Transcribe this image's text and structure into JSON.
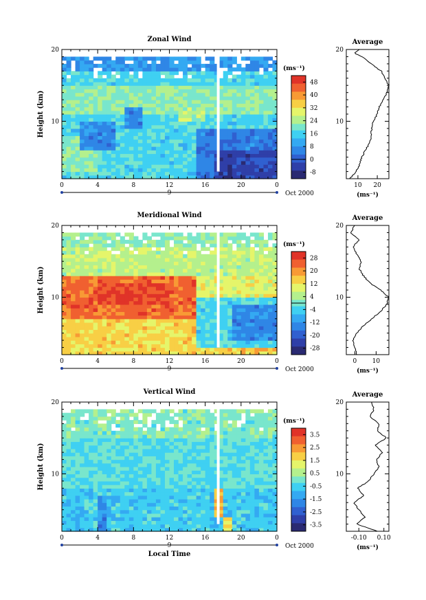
{
  "colors": {
    "scale": [
      "#2a2a72",
      "#2f3fa8",
      "#3060d0",
      "#2f86e6",
      "#34a9f2",
      "#3fd0f2",
      "#79e6cc",
      "#b4f08d",
      "#e5f56a",
      "#f8cf45",
      "#f89a35",
      "#f06030",
      "#e03328"
    ]
  },
  "chart_data": [
    {
      "type": "heatmap",
      "title": "Zonal Wind",
      "ylabel": "Height (km)",
      "xlabel": "",
      "x_ticks": [
        "0",
        "4",
        "8",
        "12",
        "16",
        "20",
        "0"
      ],
      "xlim": [
        0,
        24
      ],
      "y_ticks": [
        "10",
        "20"
      ],
      "ylim": [
        2,
        20
      ],
      "day_label": "9",
      "date_label": "Oct 2000",
      "colorbar_unit": "(ms⁻¹)",
      "colorbar_ticks": [
        "48",
        "40",
        "32",
        "24",
        "16",
        "8",
        "0",
        "-8"
      ],
      "colorbar_range": [
        -12,
        52
      ],
      "zero_level": 0,
      "regions": [
        {
          "t0": 0,
          "t1": 24,
          "h0": 2,
          "h1": 19,
          "value": 16
        },
        {
          "t0": 0,
          "t1": 24,
          "h0": 11,
          "h1": 15,
          "value": 22
        },
        {
          "t0": 0,
          "t1": 4,
          "h0": 3,
          "h1": 8,
          "value": 22
        },
        {
          "t0": 2,
          "t1": 6,
          "h0": 6,
          "h1": 10,
          "value": 6
        },
        {
          "t0": 7,
          "t1": 9,
          "h0": 9,
          "h1": 12,
          "value": 6
        },
        {
          "t0": 13,
          "t1": 16,
          "h0": 10,
          "h1": 12,
          "value": 26
        },
        {
          "t0": 15,
          "t1": 24,
          "h0": 2,
          "h1": 9,
          "value": 4
        },
        {
          "t0": 17,
          "t1": 24,
          "h0": 2,
          "h1": 6,
          "value": -4
        },
        {
          "t0": 0,
          "t1": 24,
          "h0": 17,
          "h1": 19,
          "value": 8
        }
      ],
      "avg_title": "Average",
      "avg_xlabel": "(ms⁻¹)",
      "avg_xticks": [
        "10",
        "20"
      ],
      "avg_xlim": [
        4,
        26
      ],
      "avg_profile": {
        "h": [
          2,
          3,
          4,
          5,
          6,
          7,
          8,
          9,
          10,
          11,
          12,
          13,
          14,
          15,
          16,
          17,
          18,
          19,
          19.5,
          20
        ],
        "v": [
          6,
          9,
          11,
          12,
          14,
          16,
          17,
          17,
          18,
          20,
          21,
          23,
          25,
          26,
          24,
          22,
          17,
          12,
          8,
          11
        ]
      }
    },
    {
      "type": "heatmap",
      "title": "Meridional Wind",
      "ylabel": "Height (km)",
      "xlabel": "",
      "x_ticks": [
        "0",
        "4",
        "8",
        "12",
        "16",
        "20",
        "0"
      ],
      "xlim": [
        0,
        24
      ],
      "y_ticks": [
        "10",
        "20"
      ],
      "ylim": [
        2,
        20
      ],
      "day_label": "9",
      "date_label": "Oct 2000",
      "colorbar_unit": "(ms⁻¹)",
      "colorbar_ticks": [
        "28",
        "20",
        "12",
        "4",
        "-4",
        "-12",
        "-20",
        "-28"
      ],
      "colorbar_range": [
        -32,
        32
      ],
      "zero_level": 0,
      "regions": [
        {
          "t0": 0,
          "t1": 24,
          "h0": 2,
          "h1": 19,
          "value": 10
        },
        {
          "t0": 0,
          "t1": 24,
          "h0": 2,
          "h1": 7,
          "value": 14
        },
        {
          "t0": 0,
          "t1": 15,
          "h0": 7,
          "h1": 13,
          "value": 24
        },
        {
          "t0": 4,
          "t1": 12,
          "h0": 9,
          "h1": 12,
          "value": 28
        },
        {
          "t0": 0,
          "t1": 24,
          "h0": 13,
          "h1": 17,
          "value": 6
        },
        {
          "t0": 15,
          "t1": 24,
          "h0": 3,
          "h1": 10,
          "value": -4
        },
        {
          "t0": 19,
          "t1": 24,
          "h0": 4,
          "h1": 9,
          "value": -14
        },
        {
          "t0": 0,
          "t1": 24,
          "h0": 17,
          "h1": 19,
          "value": 2
        }
      ],
      "avg_title": "Average",
      "avg_xlabel": "(ms⁻¹)",
      "avg_xticks": [
        "0",
        "10"
      ],
      "avg_xlim": [
        -4,
        16
      ],
      "avg_profile": {
        "h": [
          2,
          3,
          4,
          5,
          6,
          7,
          8,
          9,
          10,
          11,
          12,
          13,
          14,
          15,
          16,
          17,
          18,
          19,
          20
        ],
        "v": [
          1,
          0,
          -1,
          1,
          4,
          8,
          12,
          15,
          16,
          12,
          7,
          4,
          2,
          3,
          1,
          -1,
          2,
          -2,
          0
        ]
      }
    },
    {
      "type": "heatmap",
      "title": "Vertical Wind",
      "ylabel": "Height (km)",
      "xlabel": "Local Time",
      "x_ticks": [
        "0",
        "4",
        "8",
        "12",
        "16",
        "20",
        "0"
      ],
      "xlim": [
        0,
        24
      ],
      "y_ticks": [
        "10",
        "20"
      ],
      "ylim": [
        2,
        20
      ],
      "day_label": "9",
      "date_label": "Oct 2000",
      "colorbar_unit": "(ms⁻¹)",
      "colorbar_ticks": [
        "3.5",
        "2.5",
        "1.5",
        "0.5",
        "-0.5",
        "-1.5",
        "-2.5",
        "-3.5"
      ],
      "colorbar_range": [
        -4,
        4
      ],
      "zero_level": null,
      "regions": [
        {
          "t0": 0,
          "t1": 24,
          "h0": 2,
          "h1": 19,
          "value": -0.3
        },
        {
          "t0": 0,
          "t1": 24,
          "h0": 2,
          "h1": 8,
          "value": -0.7
        },
        {
          "t0": 4,
          "t1": 5,
          "h0": 2,
          "h1": 7,
          "value": -1.8
        },
        {
          "t0": 17,
          "t1": 18,
          "h0": 4,
          "h1": 8,
          "value": 2.2
        },
        {
          "t0": 18,
          "t1": 19,
          "h0": 2,
          "h1": 4,
          "value": 1.6
        },
        {
          "t0": 0,
          "t1": 24,
          "h0": 15,
          "h1": 19,
          "value": 0.1
        }
      ],
      "avg_title": "Average",
      "avg_xlabel": "(ms⁻¹)",
      "avg_xticks": [
        "-0.10",
        "0.10"
      ],
      "avg_xlim": [
        -0.2,
        0.14
      ],
      "avg_profile": {
        "h": [
          2,
          3,
          4,
          5,
          6,
          7,
          8,
          9,
          10,
          11,
          12,
          13,
          14,
          15,
          16,
          17,
          18,
          19,
          20
        ],
        "v": [
          0.05,
          -0.12,
          -0.05,
          -0.1,
          -0.14,
          -0.06,
          -0.11,
          -0.02,
          0.02,
          0.06,
          0.04,
          0.09,
          0.03,
          0.12,
          0.05,
          0.06,
          -0.01,
          0.02,
          0.0
        ]
      }
    }
  ]
}
